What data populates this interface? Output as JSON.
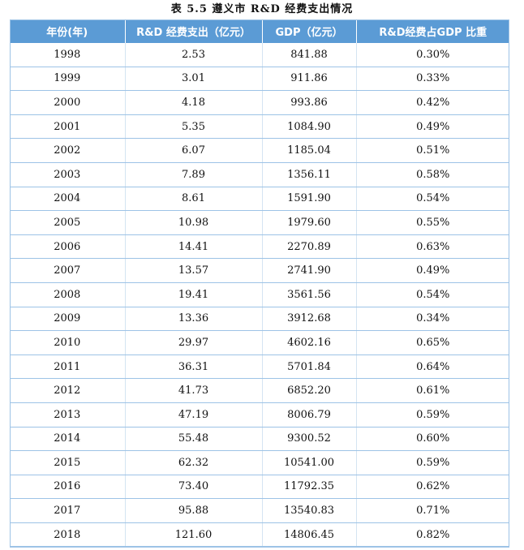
{
  "caption": "表 5.5  遵义市 R&D 经费支出情况",
  "headers": [
    "年份(年)",
    "R&D 经费支出（亿元）",
    "GDP（亿元）",
    "R&D经费占GDP 比重"
  ],
  "rows": [
    [
      "1998",
      "2.53",
      "841.88",
      "0.30%"
    ],
    [
      "1999",
      "3.01",
      "911.86",
      "0.33%"
    ],
    [
      "2000",
      "4.18",
      "993.86",
      "0.42%"
    ],
    [
      "2001",
      "5.35",
      "1084.90",
      "0.49%"
    ],
    [
      "2002",
      "6.07",
      "1185.04",
      "0.51%"
    ],
    [
      "2003",
      "7.89",
      "1356.11",
      "0.58%"
    ],
    [
      "2004",
      "8.61",
      "1591.90",
      "0.54%"
    ],
    [
      "2005",
      "10.98",
      "1979.60",
      "0.55%"
    ],
    [
      "2006",
      "14.41",
      "2270.89",
      "0.63%"
    ],
    [
      "2007",
      "13.57",
      "2741.90",
      "0.49%"
    ],
    [
      "2008",
      "19.41",
      "3561.56",
      "0.54%"
    ],
    [
      "2009",
      "13.36",
      "3912.68",
      "0.34%"
    ],
    [
      "2010",
      "29.97",
      "4602.16",
      "0.65%"
    ],
    [
      "2011",
      "36.31",
      "5701.84",
      "0.64%"
    ],
    [
      "2012",
      "41.73",
      "6852.20",
      "0.61%"
    ],
    [
      "2013",
      "47.19",
      "8006.79",
      "0.59%"
    ],
    [
      "2014",
      "55.48",
      "9300.52",
      "0.60%"
    ],
    [
      "2015",
      "62.32",
      "10541.00",
      "0.59%"
    ],
    [
      "2016",
      "73.40",
      "11792.35",
      "0.62%"
    ],
    [
      "2017",
      "95.88",
      "13540.83",
      "0.71%"
    ],
    [
      "2018",
      "121.60",
      "14806.45",
      "0.82%"
    ]
  ],
  "colors": {
    "header_bg": "#5b9bd5",
    "header_text": "#ffffff",
    "grid_line": "#9dc3e6"
  }
}
